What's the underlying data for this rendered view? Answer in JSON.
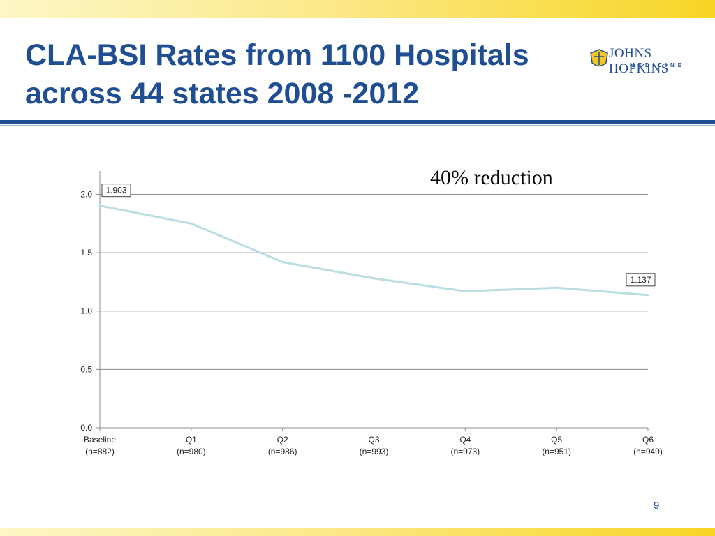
{
  "slide": {
    "title_line1": "CLA-BSI Rates from 1100 Hospitals",
    "title_line2": "across 44 states 2008 -2012",
    "logo": {
      "name": "JOHNS HOPKINS",
      "sub": "MEDICINE"
    },
    "annotation": "40% reduction",
    "page_number": "9",
    "colors": {
      "title": "#1f4e92",
      "band": "#f8d524",
      "line": "#b9dde3"
    }
  },
  "chart_data": {
    "type": "line",
    "title": "",
    "xlabel": "",
    "ylabel": "",
    "categories": [
      "Baseline",
      "Q1",
      "Q2",
      "Q3",
      "Q4",
      "Q5",
      "Q6"
    ],
    "category_sublabels": [
      "(n=882)",
      "(n=980)",
      "(n=986)",
      "(n=993)",
      "(n=973)",
      "(n=951)",
      "(n=949)"
    ],
    "series": [
      {
        "values": [
          1.903,
          1.75,
          1.42,
          1.28,
          1.17,
          1.2,
          1.137
        ]
      }
    ],
    "data_labels": [
      {
        "index": 0,
        "text": "1.903"
      },
      {
        "index": 6,
        "text": "1.137"
      }
    ],
    "ylim": [
      0,
      2.2
    ],
    "yticks": [
      0.0,
      0.5,
      1.0,
      1.5,
      2.0
    ],
    "ytick_labels": [
      "0.0",
      "0.5",
      "1.0",
      "1.5",
      "2.0"
    ],
    "grid": true,
    "legend": "none"
  }
}
